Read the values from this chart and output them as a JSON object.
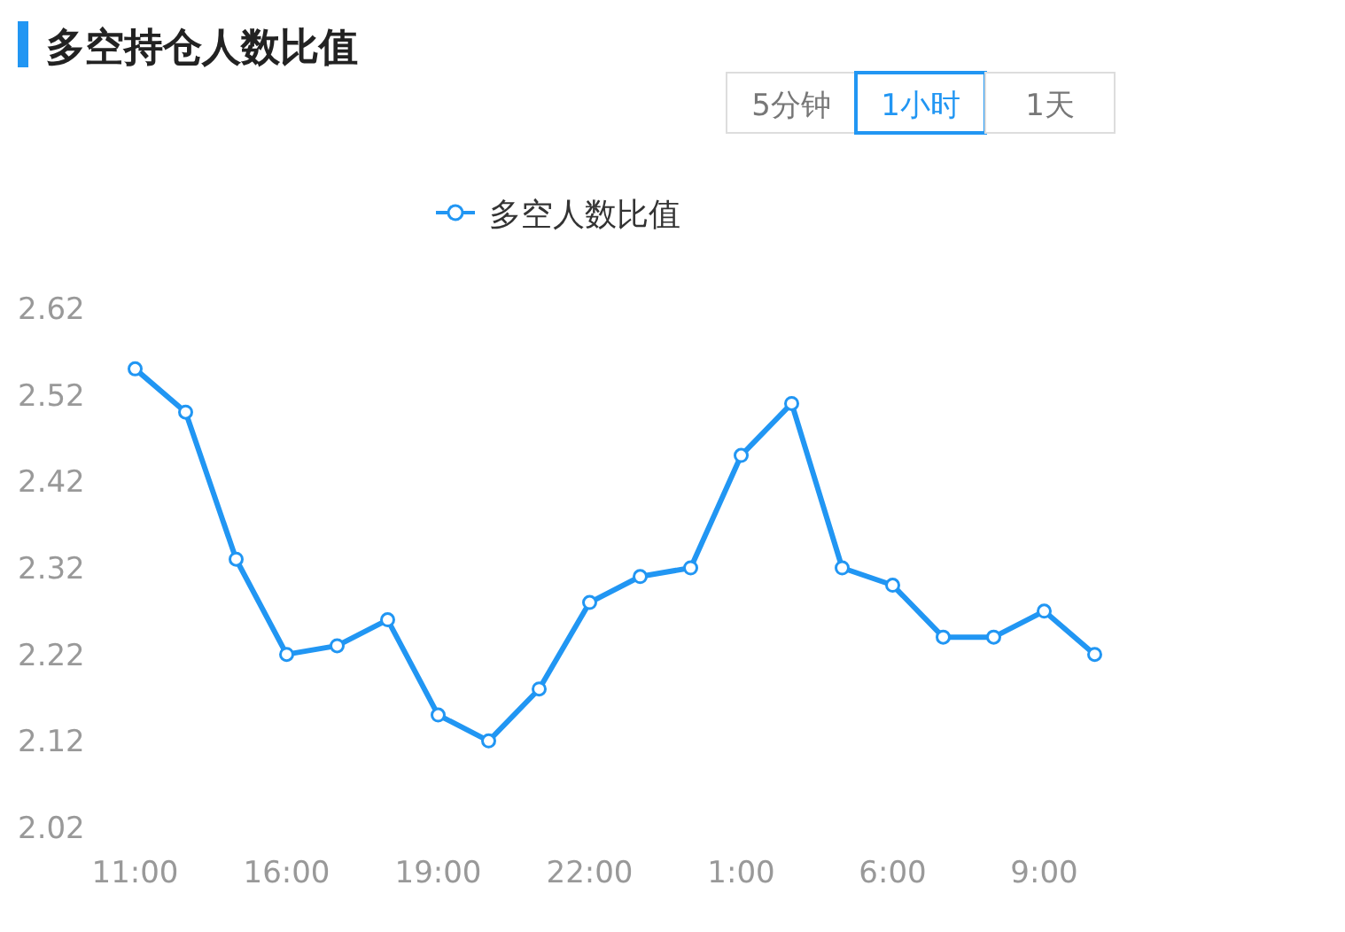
{
  "chart_data": {
    "type": "line",
    "title": "多空持仓人数比值",
    "annotations": [
      "5分钟",
      "1小时",
      "1天"
    ],
    "categories": [
      "11:00",
      null,
      null,
      "16:00",
      null,
      null,
      "19:00",
      null,
      null,
      "22:00",
      null,
      null,
      "1:00",
      null,
      null,
      "6:00",
      null,
      null,
      "9:00",
      null
    ],
    "series": [
      {
        "name": "多空人数比值",
        "color": "#2196f3",
        "values": [
          2.55,
          2.5,
          2.33,
          2.22,
          2.23,
          2.26,
          2.15,
          2.12,
          2.18,
          2.28,
          2.31,
          2.32,
          2.45,
          2.51,
          2.32,
          2.3,
          2.24,
          2.24,
          2.27,
          2.22
        ]
      }
    ],
    "ylim": [
      2.02,
      2.62
    ],
    "yticks": [
      2.02,
      2.12,
      2.22,
      2.32,
      2.42,
      2.52,
      2.62
    ],
    "grid": false,
    "legend": "top",
    "marker": "circle",
    "line_style": "solid"
  }
}
